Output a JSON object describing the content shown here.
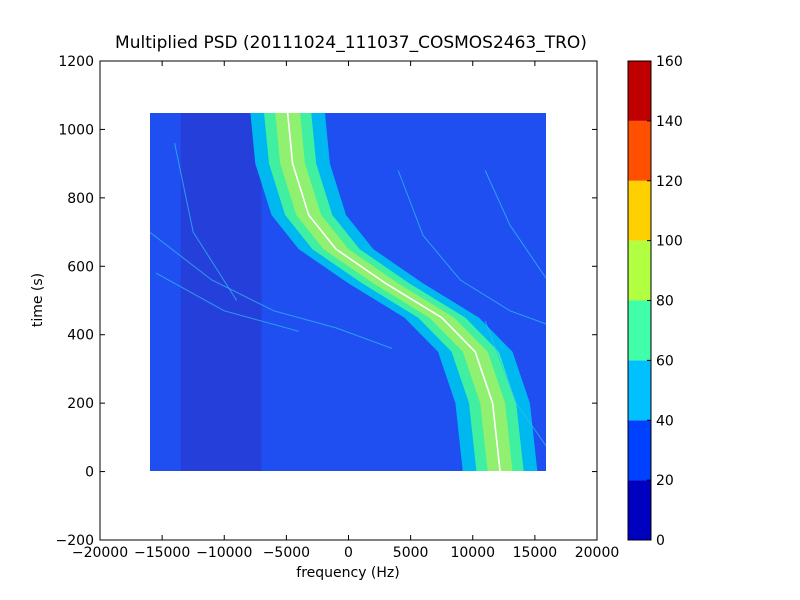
{
  "chart_data": {
    "type": "heatmap",
    "title": "Multiplied PSD (20111024_111037_COSMOS2463_TRO)",
    "xlabel": "frequency (Hz)",
    "ylabel": "time (s)",
    "xlim": [
      -20000,
      20000
    ],
    "ylim": [
      -200,
      1200
    ],
    "xticks": [
      -20000,
      -15000,
      -10000,
      -5000,
      0,
      5000,
      10000,
      15000,
      20000
    ],
    "xtick_labels": [
      "−20000",
      "−15000",
      "−10000",
      "−5000",
      "0",
      "5000",
      "10000",
      "15000",
      "20000"
    ],
    "yticks": [
      -200,
      0,
      200,
      400,
      600,
      800,
      1000,
      1200
    ],
    "ytick_labels": [
      "−200",
      "0",
      "200",
      "400",
      "600",
      "800",
      "1000",
      "1200"
    ],
    "grid": false,
    "data_extent": {
      "x": [
        -16000,
        16000
      ],
      "y": [
        0,
        1050
      ]
    },
    "main_track": {
      "description_points": [
        {
          "time": 1050,
          "frequency": -4900
        },
        {
          "time": 900,
          "frequency": -4500
        },
        {
          "time": 750,
          "frequency": -3200
        },
        {
          "time": 650,
          "frequency": -1000
        },
        {
          "time": 550,
          "frequency": 3000
        },
        {
          "time": 450,
          "frequency": 7500
        },
        {
          "time": 350,
          "frequency": 10200
        },
        {
          "time": 200,
          "frequency": 11600
        },
        {
          "time": 0,
          "frequency": 12200
        }
      ]
    },
    "colorbar": {
      "levels": [
        0,
        20,
        40,
        60,
        80,
        100,
        120,
        140,
        160
      ],
      "tick_labels": [
        "0",
        "20",
        "40",
        "60",
        "80",
        "100",
        "120",
        "140",
        "160"
      ],
      "colors": [
        "#0000c0",
        "#0040ff",
        "#00c0ff",
        "#40ffa8",
        "#b0ff40",
        "#ffd000",
        "#ff5000",
        "#c00000"
      ]
    }
  }
}
